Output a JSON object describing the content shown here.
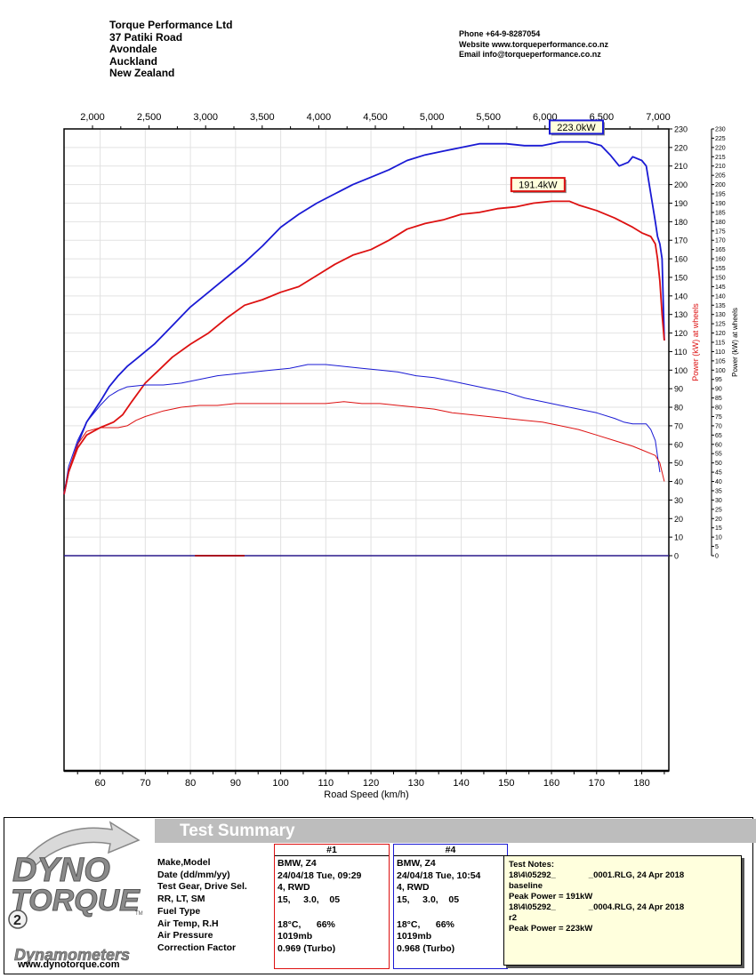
{
  "company": {
    "name": "Torque Performance Ltd",
    "address": [
      "37 Patiki Road",
      "Avondale",
      "Auckland",
      "New Zealand"
    ],
    "phone": "Phone +64-9-8287054",
    "website": "Website  www.torqueperformance.co.nz",
    "email": "Email  info@torqueperformance.co.nz"
  },
  "chart_data": {
    "type": "line",
    "xlabel": "Road Speed (km/h)",
    "xlim": [
      52,
      186
    ],
    "x_ticks": [
      60,
      70,
      80,
      90,
      100,
      110,
      120,
      130,
      140,
      150,
      160,
      170,
      180
    ],
    "x2_ticks": [
      "2,000",
      "2,500",
      "3,000",
      "3,500",
      "4,000",
      "4,500",
      "5,000",
      "5,500",
      "6,000",
      "6,500",
      "7,000"
    ],
    "ylim": [
      0,
      230
    ],
    "y_ticks": [
      0,
      10,
      20,
      30,
      40,
      50,
      60,
      70,
      80,
      90,
      100,
      110,
      120,
      130,
      140,
      150,
      160,
      170,
      180,
      190,
      200,
      210,
      220,
      230
    ],
    "y2_ticks": [
      0,
      5,
      10,
      15,
      20,
      25,
      30,
      35,
      40,
      45,
      50,
      55,
      60,
      65,
      70,
      75,
      80,
      85,
      90,
      95,
      100,
      105,
      110,
      115,
      120,
      125,
      130,
      135,
      140,
      145,
      150,
      155,
      160,
      165,
      170,
      175,
      180,
      185,
      190,
      195,
      200,
      205,
      210,
      215,
      220,
      225,
      230
    ],
    "ylabel_red": "Power (kW) at wheels",
    "ylabel_black": "Power (kW) at wheels",
    "series": [
      {
        "color": "#1a1ad4",
        "width": 1.8,
        "type": "power",
        "x": [
          52,
          53,
          55,
          57,
          60,
          62,
          64,
          66,
          68,
          70,
          72,
          74,
          76,
          78,
          80,
          84,
          88,
          92,
          96,
          100,
          104,
          108,
          112,
          116,
          120,
          124,
          128,
          132,
          136,
          140,
          144,
          146,
          150,
          154,
          158,
          162,
          164,
          168,
          171,
          173,
          175,
          177,
          178,
          180,
          181,
          182,
          183,
          183.5,
          184,
          184.5,
          185
        ],
        "y": [
          33,
          45,
          60,
          72,
          83,
          91,
          97,
          102,
          106,
          110,
          114,
          119,
          124,
          129,
          134,
          142,
          150,
          158,
          167,
          177,
          184,
          190,
          195,
          200,
          204,
          208,
          213,
          216,
          218,
          220,
          222,
          222,
          222,
          221,
          221,
          223,
          223,
          223,
          221,
          216,
          210,
          212,
          215,
          213,
          210,
          195,
          180,
          172,
          168,
          160,
          116
        ]
      },
      {
        "color": "#dd1111",
        "width": 1.8,
        "type": "power",
        "x": [
          52,
          53,
          55,
          57,
          60,
          63,
          65,
          67,
          70,
          73,
          76,
          80,
          84,
          88,
          92,
          96,
          100,
          104,
          108,
          112,
          116,
          120,
          124,
          128,
          132,
          136,
          140,
          144,
          148,
          152,
          156,
          160,
          162,
          164,
          166,
          170,
          174,
          178,
          180,
          182,
          183,
          183.5,
          184,
          184.5,
          185
        ],
        "y": [
          33,
          45,
          58,
          65,
          69,
          72,
          76,
          83,
          93,
          100,
          107,
          114,
          120,
          128,
          135,
          138,
          142,
          145,
          151,
          157,
          162,
          165,
          170,
          176,
          179,
          181,
          184,
          185,
          187,
          188,
          190,
          191,
          191,
          191,
          189,
          186,
          182,
          177,
          174,
          172,
          168,
          160,
          148,
          130,
          116
        ]
      },
      {
        "color": "#1a1ad4",
        "width": 1.0,
        "type": "thin",
        "x": [
          52,
          53,
          55,
          57,
          60,
          62,
          64,
          66,
          70,
          74,
          78,
          82,
          86,
          90,
          94,
          98,
          102,
          104,
          106,
          110,
          114,
          118,
          122,
          126,
          130,
          134,
          138,
          142,
          146,
          150,
          154,
          158,
          162,
          166,
          170,
          174,
          176,
          178,
          180,
          181,
          182,
          183,
          184
        ],
        "y": [
          33,
          48,
          62,
          72,
          81,
          86,
          89,
          91,
          92,
          92,
          93,
          95,
          97,
          98,
          99,
          100,
          101,
          102,
          103,
          103,
          102,
          101,
          100,
          99,
          97,
          96,
          94,
          92,
          90,
          88,
          85,
          83,
          81,
          79,
          77,
          74,
          72,
          71,
          71,
          71,
          68,
          62,
          45
        ]
      },
      {
        "color": "#dd1111",
        "width": 1.0,
        "type": "thin",
        "x": [
          52,
          53,
          55,
          57,
          60,
          62,
          64,
          66,
          68,
          70,
          74,
          78,
          82,
          86,
          90,
          94,
          98,
          102,
          106,
          110,
          114,
          118,
          122,
          126,
          130,
          134,
          138,
          142,
          146,
          150,
          154,
          158,
          162,
          166,
          170,
          174,
          178,
          180,
          182,
          183,
          184,
          185
        ],
        "y": [
          33,
          46,
          60,
          67,
          69,
          69,
          69,
          70,
          73,
          75,
          78,
          80,
          81,
          81,
          82,
          82,
          82,
          82,
          82,
          82,
          83,
          82,
          82,
          81,
          80,
          79,
          77,
          76,
          75,
          74,
          73,
          72,
          70,
          68,
          65,
          62,
          59,
          57,
          55,
          54,
          50,
          40
        ]
      }
    ],
    "annotations": [
      {
        "label": "223.0kW",
        "color": "#1a1ad4",
        "x": 165.5,
        "y": 231
      },
      {
        "label": "191.4kW",
        "color": "#dd1111",
        "x": 157,
        "y": 200
      }
    ]
  },
  "logo": {
    "line1": "DYNO",
    "line2": "TORQUE",
    "tm": "TM",
    "number": "2",
    "sub": "Dynamometers",
    "url": "www.dynotorque.com"
  },
  "summary": {
    "title": "Test Summary",
    "labels": [
      "Make,Model",
      "Date (dd/mm/yy)",
      "Test Gear, Drive Sel.",
      "RR, LT, SM",
      "Fuel Type",
      "Air Temp, R.H",
      "Air Pressure",
      "Correction Factor"
    ],
    "runs": [
      {
        "header": "#1",
        "color": "#dd1111",
        "values": [
          "BMW, Z4",
          "24/04/18 Tue, 09:29",
          "4, RWD",
          "15,     3.0,    05",
          "",
          "18°C,      66%",
          "1019mb",
          "0.969 (Turbo)"
        ]
      },
      {
        "header": "#4",
        "color": "#1a1ad4",
        "values": [
          "BMW, Z4",
          "24/04/18 Tue, 10:54",
          "4, RWD",
          "15,     3.0,    05",
          "",
          "18°C,      66%",
          "1019mb",
          "0.968 (Turbo)"
        ]
      }
    ],
    "notes": [
      "Test Notes:",
      "18\\4\\05292_              _0001.RLG, 24 Apr 2018",
      "baseline",
      "Peak Power = 191kW",
      "18\\4\\05292_              _0004.RLG, 24 Apr 2018",
      "r2",
      "Peak Power = 223kW"
    ]
  }
}
